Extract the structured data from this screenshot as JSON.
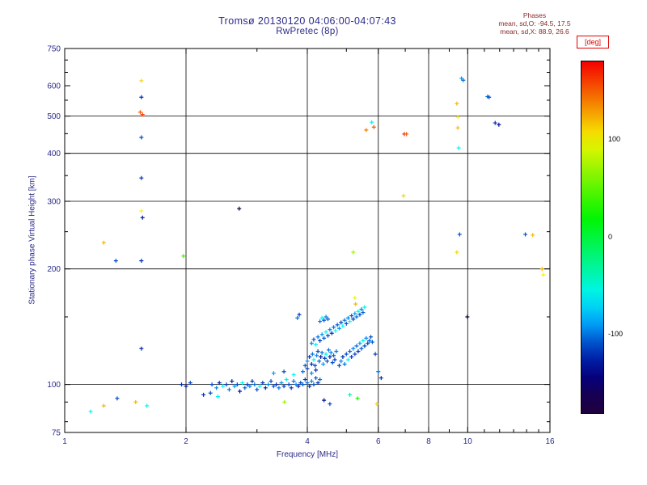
{
  "chart_data": {
    "type": "scatter",
    "title": "Tromsø 20130120 04:06:00-04:07:43",
    "subtitle": "RwPretec (8p)",
    "annotations": {
      "heading": "Phases",
      "mean_sd_o": "mean, sd,O: -94.5, 17.5",
      "mean_sd_x": "mean, sd,X:  88.9, 26.6"
    },
    "x_axis": {
      "label": "Frequency [MHz]",
      "scale": "log",
      "min": 1,
      "max": 16,
      "major_ticks": [
        1,
        2,
        4,
        6,
        8,
        10,
        16
      ],
      "minor_ticks": [
        3,
        5,
        7,
        9,
        11,
        12,
        13,
        14,
        15
      ],
      "gridlines": [
        2,
        4,
        6,
        8,
        10
      ]
    },
    "y_axis": {
      "label": "Stationary phase Virtual Height [km]",
      "scale": "log",
      "min": 75,
      "max": 750,
      "major_ticks": [
        750,
        600,
        500,
        400,
        300,
        200,
        100,
        75
      ],
      "minor_ticks": [
        80,
        90,
        150,
        250,
        350,
        450,
        550,
        650,
        700
      ],
      "gridlines": [
        100,
        200,
        300,
        400,
        500
      ]
    },
    "colorbar": {
      "label": "[deg]",
      "ticks": [
        100,
        0,
        -100
      ],
      "range": [
        -180,
        180
      ]
    },
    "points": [
      [
        2.32,
        100,
        -110
      ],
      [
        2.38,
        98,
        -95
      ],
      [
        2.42,
        101,
        -120
      ],
      [
        2.47,
        99,
        -60
      ],
      [
        2.52,
        100,
        -115
      ],
      [
        2.56,
        97,
        -100
      ],
      [
        2.6,
        102,
        -125
      ],
      [
        2.64,
        99,
        -90
      ],
      [
        2.68,
        100,
        -110
      ],
      [
        2.72,
        96,
        -130
      ],
      [
        2.76,
        101,
        -55
      ],
      [
        2.8,
        98,
        -105
      ],
      [
        2.84,
        100,
        -115
      ],
      [
        2.88,
        99,
        -95
      ],
      [
        2.92,
        102,
        -120
      ],
      [
        2.96,
        100,
        -100
      ],
      [
        3.0,
        97,
        -110
      ],
      [
        3.05,
        99,
        -60
      ],
      [
        3.1,
        101,
        -115
      ],
      [
        3.15,
        98,
        -125
      ],
      [
        3.2,
        100,
        -95
      ],
      [
        3.25,
        102,
        -110
      ],
      [
        3.3,
        99,
        -105
      ],
      [
        3.35,
        100,
        -120
      ],
      [
        3.4,
        98,
        -100
      ],
      [
        3.45,
        101,
        -90
      ],
      [
        3.5,
        99,
        -115
      ],
      [
        3.55,
        103,
        -55
      ],
      [
        3.6,
        100,
        -110
      ],
      [
        3.65,
        98,
        -120
      ],
      [
        3.7,
        102,
        -100
      ],
      [
        3.75,
        100,
        -95
      ],
      [
        3.8,
        99,
        -125
      ],
      [
        3.85,
        101,
        -110
      ],
      [
        3.9,
        100,
        -105
      ],
      [
        3.95,
        103,
        -115
      ],
      [
        4.0,
        101,
        -100
      ],
      [
        4.05,
        99,
        -120
      ],
      [
        4.1,
        102,
        -95
      ],
      [
        4.15,
        100,
        -110
      ],
      [
        4.2,
        104,
        -105
      ],
      [
        4.25,
        101,
        -115
      ],
      [
        4.3,
        103,
        -100
      ],
      [
        3.3,
        107,
        -90
      ],
      [
        3.5,
        108,
        -110
      ],
      [
        3.7,
        106,
        -60
      ],
      [
        3.9,
        108,
        -100
      ],
      [
        4.0,
        110,
        -115
      ],
      [
        4.1,
        107,
        -95
      ],
      [
        4.2,
        109,
        -120
      ],
      [
        3.95,
        112,
        -105
      ],
      [
        4.0,
        115,
        -95
      ],
      [
        4.05,
        118,
        -115
      ],
      [
        4.1,
        113,
        -120
      ],
      [
        4.12,
        120,
        -100
      ],
      [
        4.15,
        116,
        -60
      ],
      [
        4.18,
        112,
        -110
      ],
      [
        4.22,
        119,
        -95
      ],
      [
        4.25,
        122,
        -115
      ],
      [
        4.28,
        115,
        -105
      ],
      [
        4.32,
        118,
        -125
      ],
      [
        4.35,
        121,
        -100
      ],
      [
        4.38,
        113,
        -90
      ],
      [
        4.42,
        117,
        -115
      ],
      [
        4.45,
        120,
        -55
      ],
      [
        4.48,
        115,
        -110
      ],
      [
        4.52,
        123,
        -100
      ],
      [
        4.55,
        118,
        -120
      ],
      [
        4.58,
        121,
        -95
      ],
      [
        4.62,
        114,
        -110
      ],
      [
        4.65,
        119,
        -105
      ],
      [
        4.68,
        116,
        -115
      ],
      [
        4.72,
        122,
        -100
      ],
      [
        4.1,
        128,
        -95
      ],
      [
        4.15,
        131,
        -110
      ],
      [
        4.2,
        127,
        -60
      ],
      [
        4.25,
        133,
        -100
      ],
      [
        4.3,
        130,
        -115
      ],
      [
        4.35,
        135,
        -90
      ],
      [
        4.4,
        132,
        -105
      ],
      [
        4.45,
        137,
        -55
      ],
      [
        4.5,
        134,
        -110
      ],
      [
        4.55,
        139,
        -95
      ],
      [
        4.6,
        136,
        -120
      ],
      [
        4.65,
        141,
        -100
      ],
      [
        4.7,
        138,
        -60
      ],
      [
        4.75,
        143,
        -105
      ],
      [
        4.8,
        140,
        -90
      ],
      [
        4.85,
        145,
        -115
      ],
      [
        4.9,
        142,
        -55
      ],
      [
        4.95,
        147,
        -100
      ],
      [
        5.0,
        144,
        -110
      ],
      [
        5.05,
        149,
        -95
      ],
      [
        5.1,
        146,
        -60
      ],
      [
        5.15,
        151,
        -105
      ],
      [
        5.2,
        148,
        -115
      ],
      [
        5.25,
        153,
        -90
      ],
      [
        5.3,
        150,
        -100
      ],
      [
        5.35,
        155,
        -55
      ],
      [
        5.4,
        152,
        -110
      ],
      [
        5.45,
        157,
        -95
      ],
      [
        5.5,
        154,
        -105
      ],
      [
        5.55,
        159,
        -60
      ],
      [
        4.3,
        146,
        -100
      ],
      [
        4.35,
        149,
        -60
      ],
      [
        4.4,
        147,
        -110
      ],
      [
        4.45,
        150,
        -95
      ],
      [
        4.5,
        148,
        -105
      ],
      [
        3.78,
        149,
        -100
      ],
      [
        3.82,
        152,
        -115
      ],
      [
        4.8,
        112,
        -110
      ],
      [
        4.85,
        115,
        -95
      ],
      [
        4.9,
        118,
        -120
      ],
      [
        4.95,
        113,
        -100
      ],
      [
        5.0,
        120,
        -110
      ],
      [
        5.05,
        116,
        -55
      ],
      [
        5.1,
        122,
        -105
      ],
      [
        5.15,
        118,
        -115
      ],
      [
        5.2,
        124,
        -95
      ],
      [
        5.25,
        120,
        -110
      ],
      [
        5.3,
        126,
        -100
      ],
      [
        5.35,
        122,
        -120
      ],
      [
        5.4,
        128,
        -90
      ],
      [
        5.45,
        124,
        -105
      ],
      [
        5.5,
        130,
        -60
      ],
      [
        5.55,
        126,
        -110
      ],
      [
        5.6,
        132,
        -95
      ],
      [
        5.65,
        128,
        -115
      ],
      [
        5.7,
        130,
        -100
      ],
      [
        5.75,
        133,
        -110
      ],
      [
        5.8,
        129,
        -105
      ],
      [
        5.9,
        120,
        -115
      ],
      [
        6.0,
        108,
        -100
      ],
      [
        6.1,
        104,
        -120
      ],
      [
        1.95,
        100,
        -120
      ],
      [
        2.0,
        99,
        -130
      ],
      [
        2.05,
        101,
        -110
      ],
      [
        2.21,
        94,
        -120
      ],
      [
        2.3,
        95,
        -110
      ],
      [
        2.4,
        93,
        -60
      ],
      [
        3.51,
        90,
        70
      ],
      [
        4.4,
        91,
        -130
      ],
      [
        4.55,
        89,
        -110
      ],
      [
        5.1,
        94,
        -40
      ],
      [
        5.33,
        92,
        30
      ],
      [
        5.95,
        89,
        110
      ],
      [
        1.16,
        85,
        -60
      ],
      [
        1.25,
        88,
        120
      ],
      [
        1.35,
        92,
        -110
      ],
      [
        1.5,
        90,
        120
      ],
      [
        1.6,
        88,
        -60
      ],
      [
        1.55,
        618,
        110
      ],
      [
        1.55,
        560,
        -120
      ],
      [
        1.54,
        512,
        150
      ],
      [
        1.56,
        505,
        160
      ],
      [
        1.55,
        440,
        -110
      ],
      [
        1.55,
        345,
        -120
      ],
      [
        1.55,
        283,
        100
      ],
      [
        1.56,
        272,
        -130
      ],
      [
        1.55,
        210,
        -120
      ],
      [
        1.55,
        124,
        -120
      ],
      [
        1.25,
        234,
        120
      ],
      [
        1.34,
        210,
        -110
      ],
      [
        1.97,
        216,
        40
      ],
      [
        2.71,
        287,
        -170
      ],
      [
        5.2,
        221,
        70
      ],
      [
        5.25,
        168,
        100
      ],
      [
        5.27,
        162,
        120
      ],
      [
        5.78,
        482,
        -60
      ],
      [
        5.85,
        468,
        150
      ],
      [
        5.6,
        460,
        140
      ],
      [
        6.96,
        449,
        170
      ],
      [
        7.05,
        449,
        150
      ],
      [
        6.93,
        310,
        110
      ],
      [
        9.4,
        539,
        120
      ],
      [
        9.45,
        497,
        100
      ],
      [
        9.45,
        466,
        120
      ],
      [
        9.5,
        413,
        -60
      ],
      [
        9.55,
        246,
        -110
      ],
      [
        9.4,
        221,
        110
      ],
      [
        9.98,
        150,
        -170
      ],
      [
        9.65,
        627,
        -90
      ],
      [
        9.75,
        620,
        -100
      ],
      [
        11.2,
        562,
        -100
      ],
      [
        11.3,
        560,
        -110
      ],
      [
        11.7,
        480,
        -120
      ],
      [
        11.95,
        475,
        -130
      ],
      [
        13.9,
        246,
        -110
      ],
      [
        14.5,
        245,
        120
      ],
      [
        15.3,
        200,
        120
      ],
      [
        15.4,
        193,
        100
      ]
    ]
  },
  "colors": {
    "title_text": "#2a2a8a",
    "axis_text": "#2a2a8a",
    "axis_line": "#000000",
    "phases_text": "#8b2a2a",
    "deg_label": "#e00000",
    "background": "#ffffff"
  }
}
